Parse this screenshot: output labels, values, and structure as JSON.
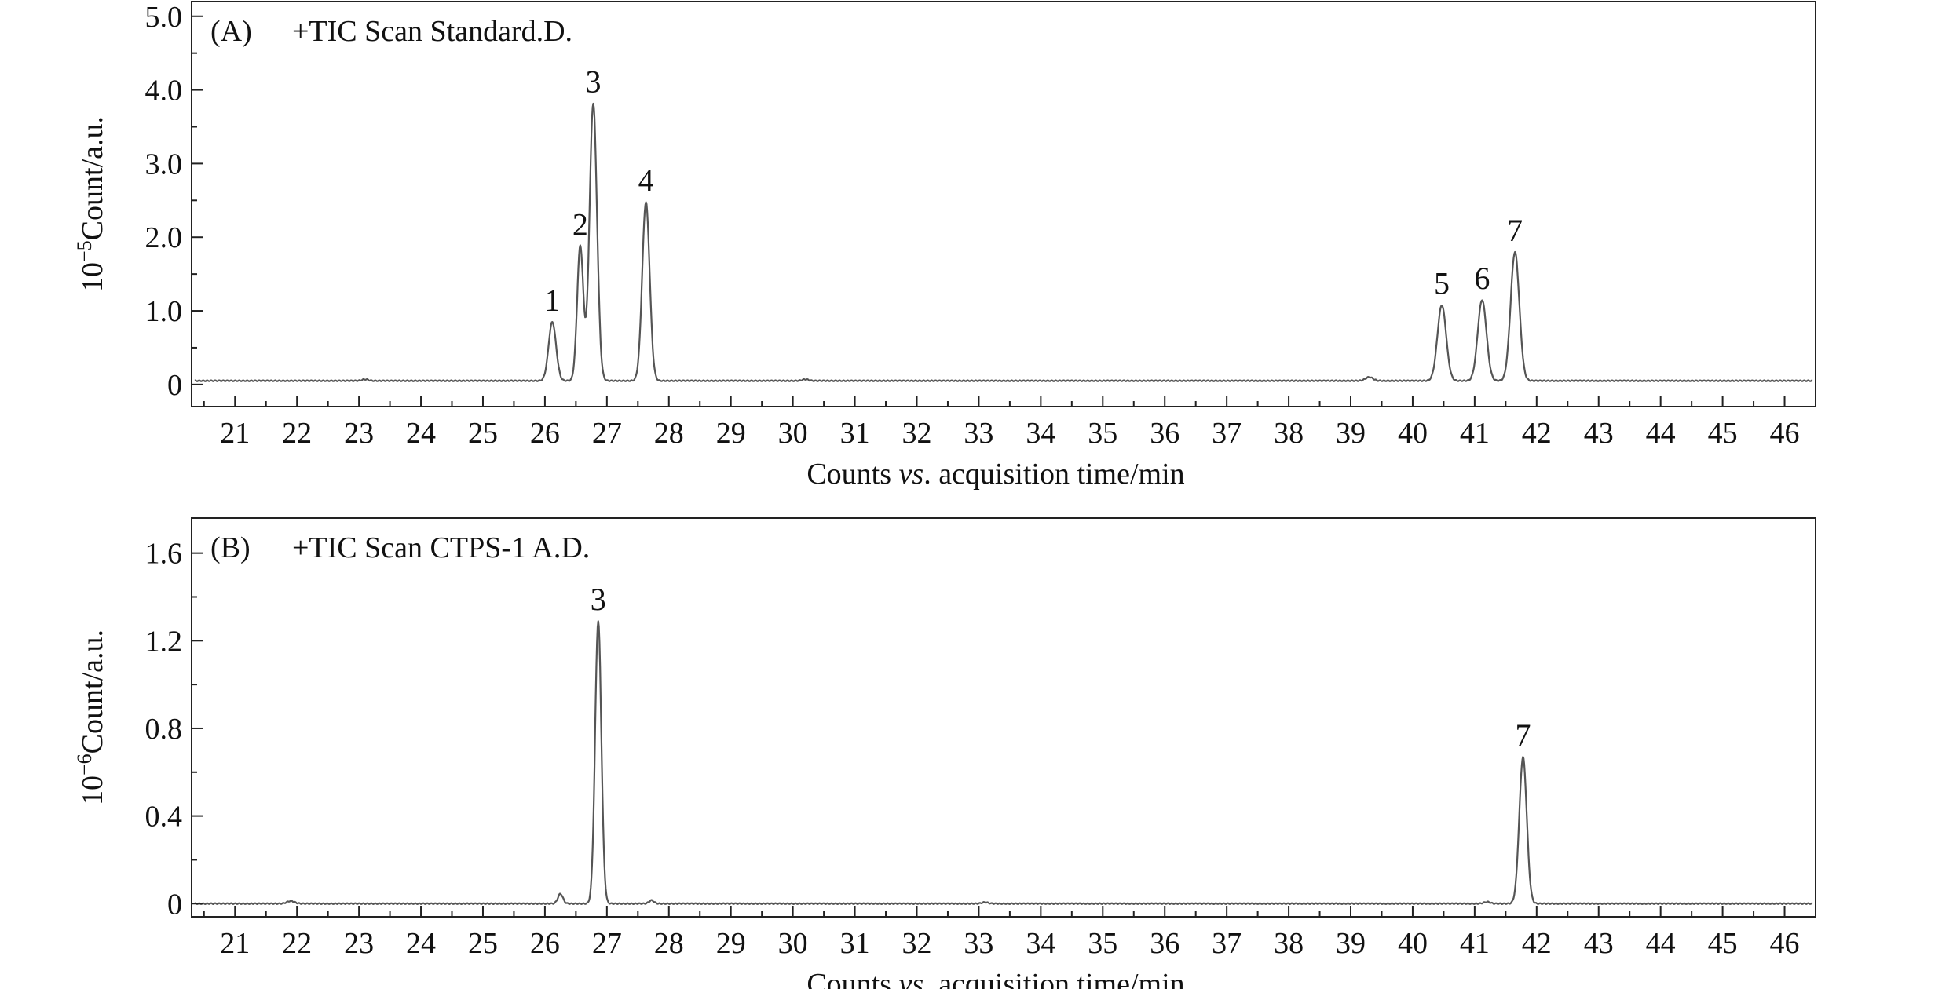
{
  "chart_data": [
    {
      "type": "line",
      "panel_label": "(A)",
      "title": "+TIC Scan Standard.D.",
      "xlabel_parts": [
        "Counts ",
        "vs",
        ". acquisition time/min"
      ],
      "ylabel_parts": [
        "10",
        "−5",
        "Count/a.u."
      ],
      "xlim": [
        20.3,
        46.5
      ],
      "ylim": [
        -0.3,
        5.2
      ],
      "xticks": [
        21,
        22,
        23,
        24,
        25,
        26,
        27,
        28,
        29,
        30,
        31,
        32,
        33,
        34,
        35,
        36,
        37,
        38,
        39,
        40,
        41,
        42,
        43,
        44,
        45,
        46
      ],
      "yticks": [
        0,
        1.0,
        2.0,
        3.0,
        4.0,
        5.0
      ],
      "ytick_labels": [
        "0",
        "1.0",
        "2.0",
        "3.0",
        "4.0",
        "5.0"
      ],
      "baseline": 0.05,
      "peaks": [
        {
          "label": "1",
          "x": 26.12,
          "y": 0.85,
          "width": 0.06
        },
        {
          "label": "2",
          "x": 26.57,
          "y": 1.88,
          "width": 0.05
        },
        {
          "label": "3",
          "x": 26.78,
          "y": 3.82,
          "width": 0.06
        },
        {
          "label": "4",
          "x": 27.63,
          "y": 2.48,
          "width": 0.06
        },
        {
          "label": "5",
          "x": 40.47,
          "y": 1.08,
          "width": 0.07
        },
        {
          "label": "6",
          "x": 41.12,
          "y": 1.15,
          "width": 0.07
        },
        {
          "label": "7",
          "x": 41.65,
          "y": 1.8,
          "width": 0.07
        }
      ],
      "minor_peaks": [
        {
          "x": 23.1,
          "y": 0.07,
          "width": 0.05
        },
        {
          "x": 30.2,
          "y": 0.07,
          "width": 0.05
        },
        {
          "x": 39.3,
          "y": 0.1,
          "width": 0.06
        }
      ]
    },
    {
      "type": "line",
      "panel_label": "(B)",
      "title": "+TIC Scan CTPS-1 A.D.",
      "xlabel_parts": [
        "Counts ",
        "vs",
        ". acquisition time/min"
      ],
      "ylabel_parts": [
        "10",
        "−6",
        "Count/a.u."
      ],
      "xlim": [
        20.3,
        46.5
      ],
      "ylim": [
        -0.06,
        1.76
      ],
      "xticks": [
        21,
        22,
        23,
        24,
        25,
        26,
        27,
        28,
        29,
        30,
        31,
        32,
        33,
        34,
        35,
        36,
        37,
        38,
        39,
        40,
        41,
        42,
        43,
        44,
        45,
        46
      ],
      "yticks": [
        0,
        0.4,
        0.8,
        1.2,
        1.6
      ],
      "ytick_labels": [
        "0",
        "0.4",
        "0.8",
        "1.2",
        "1.6"
      ],
      "baseline": 0.0,
      "peaks": [
        {
          "label": "3",
          "x": 26.86,
          "y": 1.29,
          "width": 0.05
        },
        {
          "label": "7",
          "x": 41.78,
          "y": 0.67,
          "width": 0.06
        }
      ],
      "minor_peaks": [
        {
          "x": 21.9,
          "y": 0.012,
          "width": 0.06
        },
        {
          "x": 26.25,
          "y": 0.045,
          "width": 0.04
        },
        {
          "x": 27.72,
          "y": 0.015,
          "width": 0.04
        },
        {
          "x": 33.1,
          "y": 0.006,
          "width": 0.05
        },
        {
          "x": 41.2,
          "y": 0.008,
          "width": 0.05
        }
      ]
    }
  ]
}
